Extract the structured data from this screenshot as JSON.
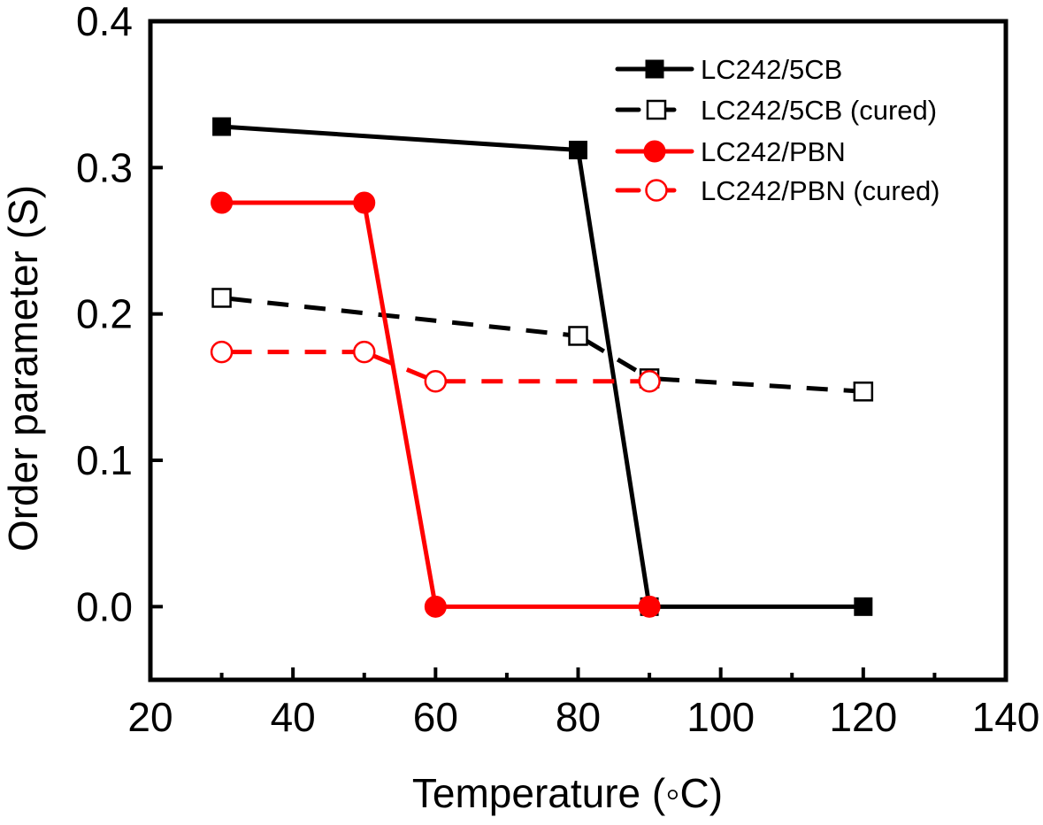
{
  "chart_data": {
    "type": "line",
    "title": "",
    "xlabel": "Temperature (◦C)",
    "ylabel": "Order parameter (S)",
    "xlim": [
      20,
      140
    ],
    "ylim": [
      -0.05,
      0.4
    ],
    "xticks": [
      20,
      40,
      60,
      80,
      100,
      120,
      140
    ],
    "xtick_labels": [
      "20",
      "40",
      "60",
      "80",
      "100",
      "120",
      "140"
    ],
    "x_minor_ticks": [
      30,
      50,
      70,
      90,
      110,
      130
    ],
    "yticks": [
      0.0,
      0.1,
      0.2,
      0.3,
      0.4
    ],
    "ytick_labels": [
      "0.0",
      "0.1",
      "0.2",
      "0.3",
      "0.4"
    ],
    "grid": false,
    "legend_position": "top-right",
    "series": [
      {
        "name": "LC242/5CB",
        "color": "#000000",
        "line_style": "solid",
        "marker": "square-filled",
        "x": [
          30,
          80,
          90,
          120
        ],
        "y": [
          0.328,
          0.312,
          0.0,
          0.0
        ]
      },
      {
        "name": "LC242/5CB (cured)",
        "color": "#000000",
        "line_style": "dashed",
        "marker": "square-open",
        "x": [
          30,
          80,
          90,
          120
        ],
        "y": [
          0.211,
          0.185,
          0.156,
          0.147
        ]
      },
      {
        "name": "LC242/PBN",
        "color": "#ff0000",
        "line_style": "solid",
        "marker": "circle-filled",
        "x": [
          30,
          50,
          60,
          90
        ],
        "y": [
          0.276,
          0.276,
          0.0,
          0.0
        ]
      },
      {
        "name": "LC242/PBN (cured)",
        "color": "#ff0000",
        "line_style": "dashed",
        "marker": "circle-open",
        "x": [
          30,
          50,
          60,
          90
        ],
        "y": [
          0.174,
          0.174,
          0.154,
          0.154
        ]
      }
    ]
  }
}
